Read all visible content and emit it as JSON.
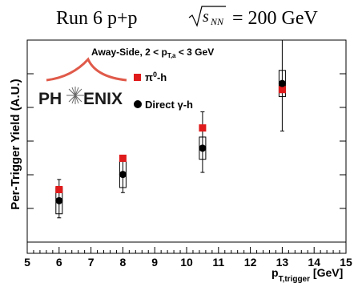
{
  "header": {
    "title_prefix": "Run 6 p+p",
    "title_root_symbol": "s",
    "title_root_subscript": "NN",
    "title_suffix": "= 200 GeV"
  },
  "logo": {
    "text_left": "PH",
    "text_right": "ENIX",
    "colors": {
      "text": "#1a1a1a",
      "flare": "#e05a4a"
    }
  },
  "chart_data": {
    "type": "scatter",
    "annotation": {
      "prefix": "Away-Side, 2 < p",
      "sub": "T,a",
      "suffix": " < 3 GeV"
    },
    "xlabel": {
      "main": "p",
      "sub": "T,trigger",
      "unit": " [GeV]"
    },
    "ylabel": "Per-Trigger Yield (A.U.)",
    "xlim": [
      5,
      15
    ],
    "x_ticks": [
      5,
      6,
      7,
      8,
      9,
      10,
      11,
      12,
      13,
      14,
      15
    ],
    "ylim": [
      0,
      1
    ],
    "y_ticks_shown_unlabeled": true,
    "grid": false,
    "legend_position": "upper-left",
    "series": [
      {
        "name": "π⁰-h",
        "legend_main": "π",
        "legend_sup": "0",
        "legend_suffix": "-h",
        "marker": "square",
        "color": "#e01b1b",
        "points": [
          {
            "x": 6.0,
            "y": 0.26
          },
          {
            "x": 8.0,
            "y": 0.415
          },
          {
            "x": 10.5,
            "y": 0.565
          },
          {
            "x": 13.0,
            "y": 0.755
          }
        ]
      },
      {
        "name": "Direct γ-h",
        "legend_main": "Direct γ-h",
        "marker": "circle",
        "color": "#000000",
        "points": [
          {
            "x": 6.0,
            "y": 0.205,
            "err_lo": 0.085,
            "err_hi": 0.105,
            "sys_lo": 0.065,
            "sys_hi": 0.065
          },
          {
            "x": 8.0,
            "y": 0.335,
            "err_lo": 0.09,
            "err_hi": 0.095,
            "sys_lo": 0.065,
            "sys_hi": 0.065
          },
          {
            "x": 10.5,
            "y": 0.465,
            "err_lo": 0.12,
            "err_hi": 0.18,
            "sys_lo": 0.055,
            "sys_hi": 0.055
          },
          {
            "x": 13.0,
            "y": 0.785,
            "err_lo": 0.235,
            "err_hi": 0.215,
            "sys_lo": 0.065,
            "sys_hi": 0.065
          }
        ]
      }
    ]
  }
}
